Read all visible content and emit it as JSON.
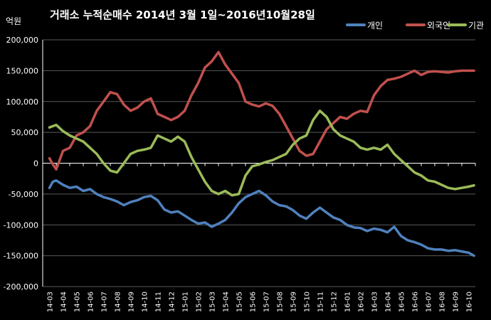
{
  "chart_data": {
    "type": "line",
    "title": "거래소 누적순매수 2014년 3월 1일~2016년10월28일",
    "ylabel": "억원",
    "xlabel": "",
    "ylim": [
      -200000,
      200000
    ],
    "yticks": [
      200000,
      150000,
      100000,
      50000,
      0,
      -50000,
      -100000,
      -150000,
      -200000
    ],
    "ytick_labels": [
      "200,000",
      "150,000",
      "100,000",
      "50,000",
      "0",
      "-50,000",
      "-100,000",
      "-150,000",
      "-200,000"
    ],
    "grid": true,
    "legend_position": "top-right",
    "categories": [
      "14-03",
      "14-04",
      "14-05",
      "14-06",
      "14-07",
      "14-08",
      "14-09",
      "14-10",
      "14-11",
      "14-12",
      "15-01",
      "15-02",
      "15-03",
      "15-04",
      "15-05",
      "15-06",
      "15-07",
      "15-08",
      "15-09",
      "15-10",
      "15-11",
      "15-12",
      "16-01",
      "16-02",
      "16-03",
      "16-04",
      "16-05",
      "16-06",
      "16-07",
      "16-08",
      "16-09",
      "16-10"
    ],
    "x": [
      0,
      0.25,
      0.5,
      1,
      1.5,
      2,
      2.5,
      3,
      3.5,
      4,
      4.5,
      5,
      5.5,
      6,
      6.5,
      7,
      7.5,
      8,
      8.5,
      9,
      9.5,
      10,
      10.5,
      11,
      11.5,
      12,
      12.5,
      13,
      13.5,
      14,
      14.5,
      15,
      15.5,
      16,
      16.5,
      17,
      17.5,
      18,
      18.5,
      19,
      19.5,
      20,
      20.5,
      21,
      21.5,
      22,
      22.5,
      23,
      23.5,
      24,
      24.5,
      25,
      25.5,
      26,
      26.5,
      27,
      27.5,
      28,
      28.5,
      29,
      29.5,
      30,
      30.5,
      31,
      31.4
    ],
    "series": [
      {
        "name": "개인",
        "color": "#4f81bd",
        "values": [
          -40000,
          -30000,
          -28000,
          -35000,
          -40000,
          -38000,
          -45000,
          -42000,
          -50000,
          -55000,
          -58000,
          -62000,
          -68000,
          -63000,
          -60000,
          -55000,
          -53000,
          -60000,
          -75000,
          -80000,
          -78000,
          -85000,
          -92000,
          -98000,
          -96000,
          -103000,
          -98000,
          -92000,
          -80000,
          -65000,
          -55000,
          -50000,
          -45000,
          -52000,
          -62000,
          -68000,
          -70000,
          -76000,
          -85000,
          -90000,
          -80000,
          -72000,
          -80000,
          -88000,
          -92000,
          -100000,
          -104000,
          -105000,
          -110000,
          -106000,
          -108000,
          -112000,
          -103000,
          -118000,
          -125000,
          -128000,
          -132000,
          -138000,
          -140000,
          -140000,
          -142000,
          -141000,
          -143000,
          -145000,
          -150000
        ]
      },
      {
        "name": "외국인",
        "color": "#c0504d",
        "values": [
          8000,
          -2000,
          -10000,
          20000,
          25000,
          45000,
          50000,
          60000,
          85000,
          100000,
          115000,
          112000,
          95000,
          85000,
          90000,
          100000,
          105000,
          80000,
          75000,
          70000,
          75000,
          85000,
          110000,
          130000,
          155000,
          165000,
          180000,
          160000,
          145000,
          130000,
          100000,
          95000,
          92000,
          97000,
          93000,
          80000,
          60000,
          40000,
          20000,
          12000,
          15000,
          35000,
          55000,
          65000,
          75000,
          72000,
          80000,
          85000,
          83000,
          110000,
          125000,
          135000,
          137000,
          140000,
          145000,
          150000,
          143000,
          148000,
          149000,
          148000,
          147000,
          149000,
          150000,
          150000,
          150000
        ]
      },
      {
        "name": "기관",
        "color": "#9bbb59",
        "values": [
          58000,
          60000,
          62000,
          52000,
          45000,
          40000,
          35000,
          25000,
          15000,
          0,
          -12000,
          -15000,
          0,
          15000,
          20000,
          22000,
          25000,
          45000,
          40000,
          35000,
          43000,
          35000,
          10000,
          -10000,
          -30000,
          -45000,
          -50000,
          -45000,
          -52000,
          -50000,
          -20000,
          -5000,
          -2000,
          2000,
          5000,
          10000,
          15000,
          30000,
          40000,
          45000,
          70000,
          85000,
          75000,
          55000,
          45000,
          40000,
          35000,
          25000,
          22000,
          25000,
          22000,
          30000,
          15000,
          5000,
          -5000,
          -15000,
          -20000,
          -28000,
          -30000,
          -35000,
          -40000,
          -42000,
          -40000,
          -38000,
          -36000
        ]
      }
    ]
  }
}
